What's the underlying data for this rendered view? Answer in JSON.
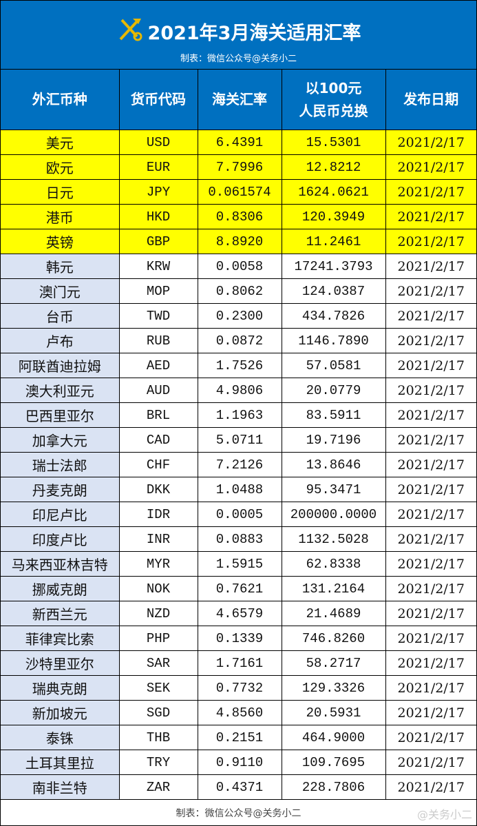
{
  "header": {
    "title": "2021年3月海关适用汇率",
    "subtitle": "制表：微信公众号@关务小二",
    "icon": "customs-emblem-icon"
  },
  "columns": [
    "外汇币种",
    "货币代码",
    "海关汇率",
    "以100元\n人民币兑换",
    "发布日期"
  ],
  "colors": {
    "header_bg": "#0070c0",
    "highlight": "#ffff00",
    "name_bg": "#dae3f3"
  },
  "rows": [
    {
      "name": "美元",
      "code": "USD",
      "rate": "6.4391",
      "per100": "15.5301",
      "date": "2021/2/17",
      "highlight": true
    },
    {
      "name": "欧元",
      "code": "EUR",
      "rate": "7.7996",
      "per100": "12.8212",
      "date": "2021/2/17",
      "highlight": true
    },
    {
      "name": "日元",
      "code": "JPY",
      "rate": "0.061574",
      "per100": "1624.0621",
      "date": "2021/2/17",
      "highlight": true
    },
    {
      "name": "港币",
      "code": "HKD",
      "rate": "0.8306",
      "per100": "120.3949",
      "date": "2021/2/17",
      "highlight": true
    },
    {
      "name": "英镑",
      "code": "GBP",
      "rate": "8.8920",
      "per100": "11.2461",
      "date": "2021/2/17",
      "highlight": true
    },
    {
      "name": "韩元",
      "code": "KRW",
      "rate": "0.0058",
      "per100": "17241.3793",
      "date": "2021/2/17"
    },
    {
      "name": "澳门元",
      "code": "MOP",
      "rate": "0.8062",
      "per100": "124.0387",
      "date": "2021/2/17"
    },
    {
      "name": "台币",
      "code": "TWD",
      "rate": "0.2300",
      "per100": "434.7826",
      "date": "2021/2/17"
    },
    {
      "name": "卢布",
      "code": "RUB",
      "rate": "0.0872",
      "per100": "1146.7890",
      "date": "2021/2/17"
    },
    {
      "name": "阿联酋迪拉姆",
      "code": "AED",
      "rate": "1.7526",
      "per100": "57.0581",
      "date": "2021/2/17"
    },
    {
      "name": "澳大利亚元",
      "code": "AUD",
      "rate": "4.9806",
      "per100": "20.0779",
      "date": "2021/2/17"
    },
    {
      "name": "巴西里亚尔",
      "code": "BRL",
      "rate": "1.1963",
      "per100": "83.5911",
      "date": "2021/2/17"
    },
    {
      "name": "加拿大元",
      "code": "CAD",
      "rate": "5.0711",
      "per100": "19.7196",
      "date": "2021/2/17"
    },
    {
      "name": "瑞士法郎",
      "code": "CHF",
      "rate": "7.2126",
      "per100": "13.8646",
      "date": "2021/2/17"
    },
    {
      "name": "丹麦克朗",
      "code": "DKK",
      "rate": "1.0488",
      "per100": "95.3471",
      "date": "2021/2/17"
    },
    {
      "name": "印尼卢比",
      "code": "IDR",
      "rate": "0.0005",
      "per100": "200000.0000",
      "date": "2021/2/17"
    },
    {
      "name": "印度卢比",
      "code": "INR",
      "rate": "0.0883",
      "per100": "1132.5028",
      "date": "2021/2/17"
    },
    {
      "name": "马来西亚林吉特",
      "code": "MYR",
      "rate": "1.5915",
      "per100": "62.8338",
      "date": "2021/2/17"
    },
    {
      "name": "挪威克朗",
      "code": "NOK",
      "rate": "0.7621",
      "per100": "131.2164",
      "date": "2021/2/17"
    },
    {
      "name": "新西兰元",
      "code": "NZD",
      "rate": "4.6579",
      "per100": "21.4689",
      "date": "2021/2/17"
    },
    {
      "name": "菲律宾比索",
      "code": "PHP",
      "rate": "0.1339",
      "per100": "746.8260",
      "date": "2021/2/17"
    },
    {
      "name": "沙特里亚尔",
      "code": "SAR",
      "rate": "1.7161",
      "per100": "58.2717",
      "date": "2021/2/17"
    },
    {
      "name": "瑞典克朗",
      "code": "SEK",
      "rate": "0.7732",
      "per100": "129.3326",
      "date": "2021/2/17"
    },
    {
      "name": "新加坡元",
      "code": "SGD",
      "rate": "4.8560",
      "per100": "20.5931",
      "date": "2021/2/17"
    },
    {
      "name": "泰铢",
      "code": "THB",
      "rate": "0.2151",
      "per100": "464.9000",
      "date": "2021/2/17"
    },
    {
      "name": "土耳其里拉",
      "code": "TRY",
      "rate": "0.9110",
      "per100": "109.7695",
      "date": "2021/2/17"
    },
    {
      "name": "南非兰特",
      "code": "ZAR",
      "rate": "0.4371",
      "per100": "228.7806",
      "date": "2021/2/17"
    }
  ],
  "footer": {
    "text": "制表：微信公众号@关务小二",
    "watermark": "@关务小二"
  }
}
